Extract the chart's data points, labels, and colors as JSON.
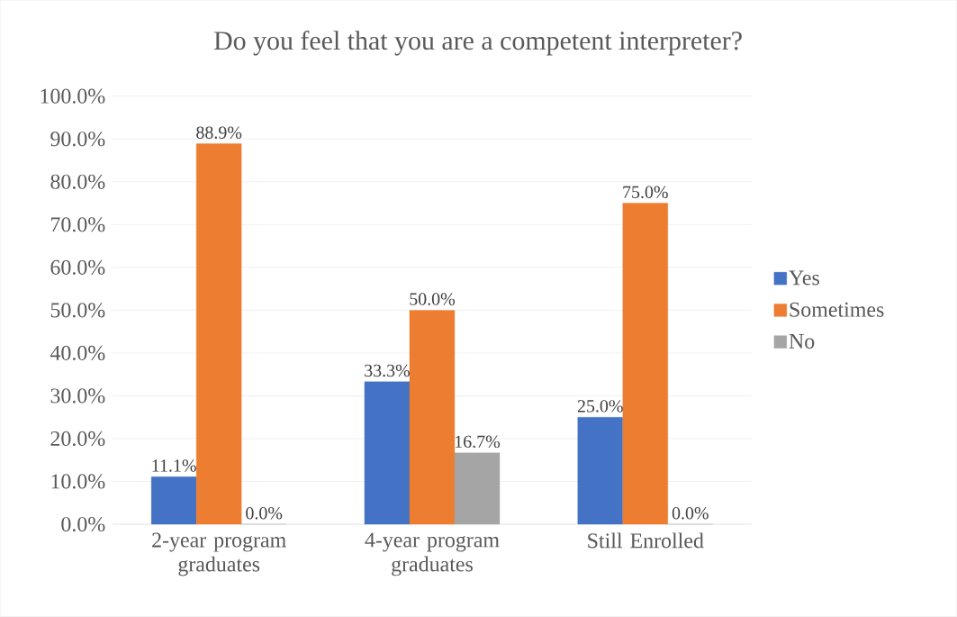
{
  "chart_data": {
    "type": "bar",
    "title": "Do you feel that you are a competent interpreter?",
    "categories": [
      "2-year program graduates",
      "4-year program graduates",
      "Still Enrolled"
    ],
    "series": [
      {
        "name": "Yes",
        "color": "#4472c4",
        "values": [
          11.1,
          33.3,
          25.0
        ],
        "value_labels": [
          "11.1%",
          "33.3%",
          "25.0%"
        ]
      },
      {
        "name": "Sometimes",
        "color": "#ed7d31",
        "values": [
          88.9,
          50.0,
          75.0
        ],
        "value_labels": [
          "88.9%",
          "50.0%",
          "75.0%"
        ]
      },
      {
        "name": "No",
        "color": "#a5a5a5",
        "values": [
          0.0,
          16.7,
          0.0
        ],
        "value_labels": [
          "0.0%",
          "16.7%",
          "0.0%"
        ]
      }
    ],
    "ylim": [
      0,
      100
    ],
    "yticks": [
      {
        "value": 0,
        "label": "0.0%"
      },
      {
        "value": 10,
        "label": "10.0%"
      },
      {
        "value": 20,
        "label": "20.0%"
      },
      {
        "value": 30,
        "label": "30.0%"
      },
      {
        "value": 40,
        "label": "40.0%"
      },
      {
        "value": 50,
        "label": "50.0%"
      },
      {
        "value": 60,
        "label": "60.0%"
      },
      {
        "value": 70,
        "label": "70.0%"
      },
      {
        "value": 80,
        "label": "80.0%"
      },
      {
        "value": 90,
        "label": "90.0%"
      },
      {
        "value": 100,
        "label": "100.0%"
      }
    ],
    "grid": "y",
    "legend": "right"
  }
}
